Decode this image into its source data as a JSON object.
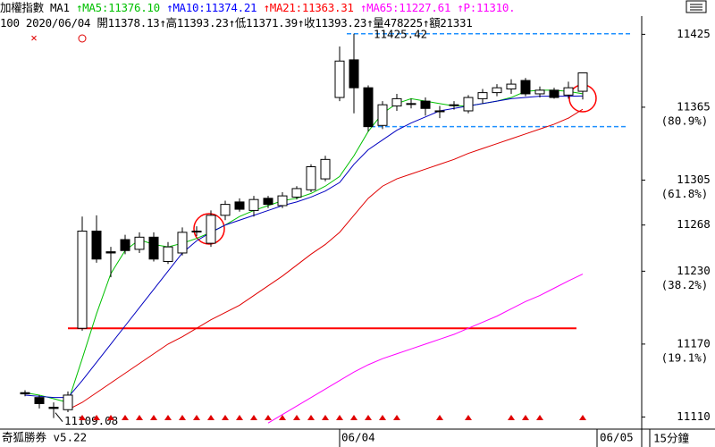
{
  "header": {
    "line1": [
      {
        "text": "加權指數 MA1 ",
        "color": "#000000"
      },
      {
        "text": "↑MA5:11376.10 ",
        "color": "#00c000"
      },
      {
        "text": "↑MA10:11374.21 ",
        "color": "#0000ff"
      },
      {
        "text": "↑MA21:11363.31 ",
        "color": "#ff0000"
      },
      {
        "text": "↑MA65:11227.61 ",
        "color": "#ff00ff"
      },
      {
        "text": "↑P:11310.",
        "color": "#ff00ff"
      }
    ],
    "line2": "100 2020/06/04 開11378.13↑高11393.23↑低11371.39↑收11393.23↑量478225↑額21331"
  },
  "footer": {
    "brand": "奇狐勝券 v5.22",
    "next_label": "06/05",
    "period": "15分鐘"
  },
  "chart_data": {
    "type": "candlestick",
    "categories": [
      null,
      null,
      null,
      null,
      null,
      null,
      null,
      null,
      null,
      null,
      null,
      null,
      null,
      null,
      null,
      null,
      null,
      null,
      null,
      null,
      null,
      null,
      "06/04",
      null,
      null,
      null,
      null,
      null,
      null,
      null,
      null,
      null,
      null,
      null,
      null,
      null,
      null,
      null,
      null,
      null
    ],
    "open": [
      11130,
      11126,
      11118,
      11116,
      11183,
      11263,
      11246,
      11256,
      11248,
      11258,
      11238,
      11245,
      11263,
      11253,
      11276,
      11287,
      11280,
      11290,
      11284,
      11291,
      11297,
      11306,
      11373,
      11404,
      11381,
      11350,
      11366,
      11368,
      11370,
      11362,
      11367,
      11362,
      11372,
      11377,
      11380,
      11387,
      11376,
      11379,
      11375,
      11378.13
    ],
    "high": [
      11132,
      11128,
      11122,
      11131,
      11275,
      11276,
      11250,
      11260,
      11262,
      11262,
      11254,
      11266,
      11267,
      11280,
      11288,
      11290,
      11292,
      11292,
      11295,
      11300,
      11318,
      11325,
      11415,
      11425.42,
      11383,
      11370,
      11376,
      11372,
      11373,
      11366,
      11370,
      11375,
      11380,
      11384,
      11388,
      11389,
      11382,
      11381,
      11386,
      11393.23
    ],
    "low": [
      11127,
      11117,
      11109.08,
      11114,
      11181,
      11237,
      11225,
      11244,
      11245,
      11238,
      11236,
      11243,
      11259,
      11250,
      11272,
      11279,
      11275,
      11282,
      11282,
      11289,
      11295,
      11304,
      11370,
      11360,
      11345,
      11347,
      11362,
      11364,
      11358,
      11356,
      11363,
      11360,
      11368,
      11374,
      11376,
      11374,
      11373,
      11372,
      11372,
      11371.39
    ],
    "close": [
      11129,
      11121,
      11117,
      11128,
      11263,
      11240,
      11245,
      11247,
      11258,
      11240,
      11250,
      11262,
      11263,
      11276,
      11285,
      11281,
      11289,
      11285,
      11292,
      11298,
      11316,
      11322,
      11403,
      11381,
      11349,
      11367,
      11372,
      11368,
      11364,
      11362,
      11367,
      11373,
      11377,
      11381,
      11384,
      11376,
      11379,
      11373,
      11381,
      11393.23
    ],
    "series": [
      {
        "color": "#00c000",
        "values": [
          11130,
          11128,
          11125,
          11122,
          11158,
          11195,
          11228,
          11247,
          11256,
          11252,
          11250,
          11253,
          11257,
          11262,
          11268,
          11275,
          11280,
          11284,
          11288,
          11290,
          11294,
          11300,
          11308,
          11325,
          11345,
          11360,
          11368,
          11372,
          11370,
          11368,
          11366,
          11366,
          11368,
          11370,
          11373,
          11378,
          11379,
          11379,
          11378,
          11376.1
        ]
      },
      {
        "color": "#0000c0",
        "values": [
          11128,
          11127,
          11126,
          11126,
          11140,
          11155,
          11170,
          11185,
          11200,
          11215,
          11230,
          11245,
          11255,
          11262,
          11268,
          11272,
          11276,
          11280,
          11284,
          11287,
          11291,
          11296,
          11303,
          11318,
          11330,
          11338,
          11346,
          11352,
          11357,
          11362,
          11364,
          11366,
          11368,
          11370,
          11372,
          11373,
          11374,
          11374,
          11374,
          11374.21
        ]
      },
      {
        "color": "#e00000",
        "values": [
          null,
          null,
          null,
          11116,
          11122,
          11130,
          11138,
          11146,
          11154,
          11162,
          11170,
          11176,
          11183,
          11190,
          11196,
          11202,
          11210,
          11218,
          11226,
          11235,
          11244,
          11252,
          11262,
          11276,
          11290,
          11300,
          11306,
          11310,
          11314,
          11318,
          11322,
          11327,
          11331,
          11335,
          11339,
          11343,
          11347,
          11351,
          11356,
          11363.31
        ]
      },
      {
        "color": "#ff00ff",
        "values": [
          null,
          null,
          null,
          null,
          null,
          null,
          null,
          null,
          null,
          null,
          null,
          null,
          null,
          null,
          null,
          null,
          null,
          11105,
          11112,
          11119,
          11126,
          11133,
          11140,
          11147,
          11153,
          11158,
          11162,
          11166,
          11170,
          11174,
          11178,
          11183,
          11188,
          11193,
          11199,
          11205,
          11210,
          11216,
          11222,
          11227.61
        ]
      }
    ],
    "ylim": [
      11100,
      11440
    ],
    "yticks": [
      11425,
      11365,
      11305,
      11268,
      11230,
      11170,
      11110
    ],
    "fib_labels": [
      {
        "value": 11365,
        "label": "(80.9%)"
      },
      {
        "value": 11305,
        "label": "(61.8%)"
      },
      {
        "value": 11230,
        "label": "(38.2%)"
      },
      {
        "value": 11170,
        "label": "(19.1%)"
      }
    ],
    "support_line": {
      "value": 11183,
      "color": "#ff0000"
    },
    "high_label": 11425.42,
    "low_label": 11109.08,
    "box_low": 11349,
    "dash_color": "#1e90ff"
  }
}
